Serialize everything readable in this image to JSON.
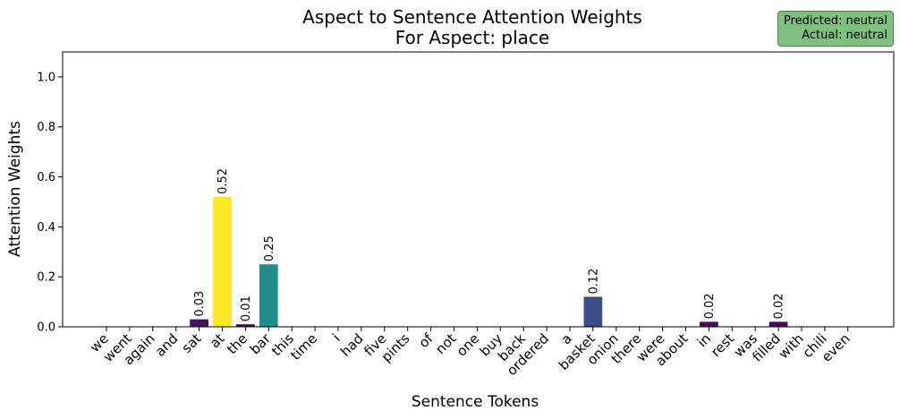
{
  "chart_data": {
    "type": "bar",
    "title": "Aspect to Sentence Attention Weights",
    "subtitle": "For Aspect: place",
    "xlabel": "Sentence Tokens",
    "ylabel": "Attention Weights",
    "ylim": [
      0,
      1.1
    ],
    "yticks": [
      "0.0",
      "0.2",
      "0.4",
      "0.6",
      "0.8",
      "1.0"
    ],
    "ytick_values": [
      0,
      0.2,
      0.4,
      0.6,
      0.8,
      1.0
    ],
    "grid": false,
    "categories": [
      "we",
      "went",
      "again",
      "and",
      "sat",
      "at",
      "the",
      "bar",
      "this",
      "time",
      "i",
      "had",
      "five",
      "pints",
      "of",
      "not",
      "one",
      "buy",
      "back",
      "ordered",
      "a",
      "basket",
      "onion",
      "there",
      "were",
      "about",
      "in",
      "rest",
      "was",
      "filled",
      "with",
      "chili",
      "even"
    ],
    "values": [
      0,
      0,
      0,
      0,
      0.03,
      0.52,
      0.01,
      0.25,
      0,
      0,
      0,
      0,
      0,
      0,
      0,
      0,
      0,
      0,
      0,
      0,
      0,
      0.12,
      0,
      0,
      0,
      0,
      0.02,
      0,
      0,
      0.02,
      0,
      0,
      0
    ],
    "labels": [
      "",
      "",
      "",
      "",
      "0.03",
      "0.52",
      "0.01",
      "0.25",
      "",
      "",
      "",
      "",
      "",
      "",
      "",
      "",
      "",
      "",
      "",
      "",
      "",
      "0.12",
      "",
      "",
      "",
      "",
      "0.02",
      "",
      "",
      "0.02",
      "",
      "",
      ""
    ],
    "colormap": "viridis"
  },
  "prediction": {
    "predicted": "Predicted: neutral",
    "actual": "Actual: neutral",
    "box_color": "#7fbf7f"
  }
}
